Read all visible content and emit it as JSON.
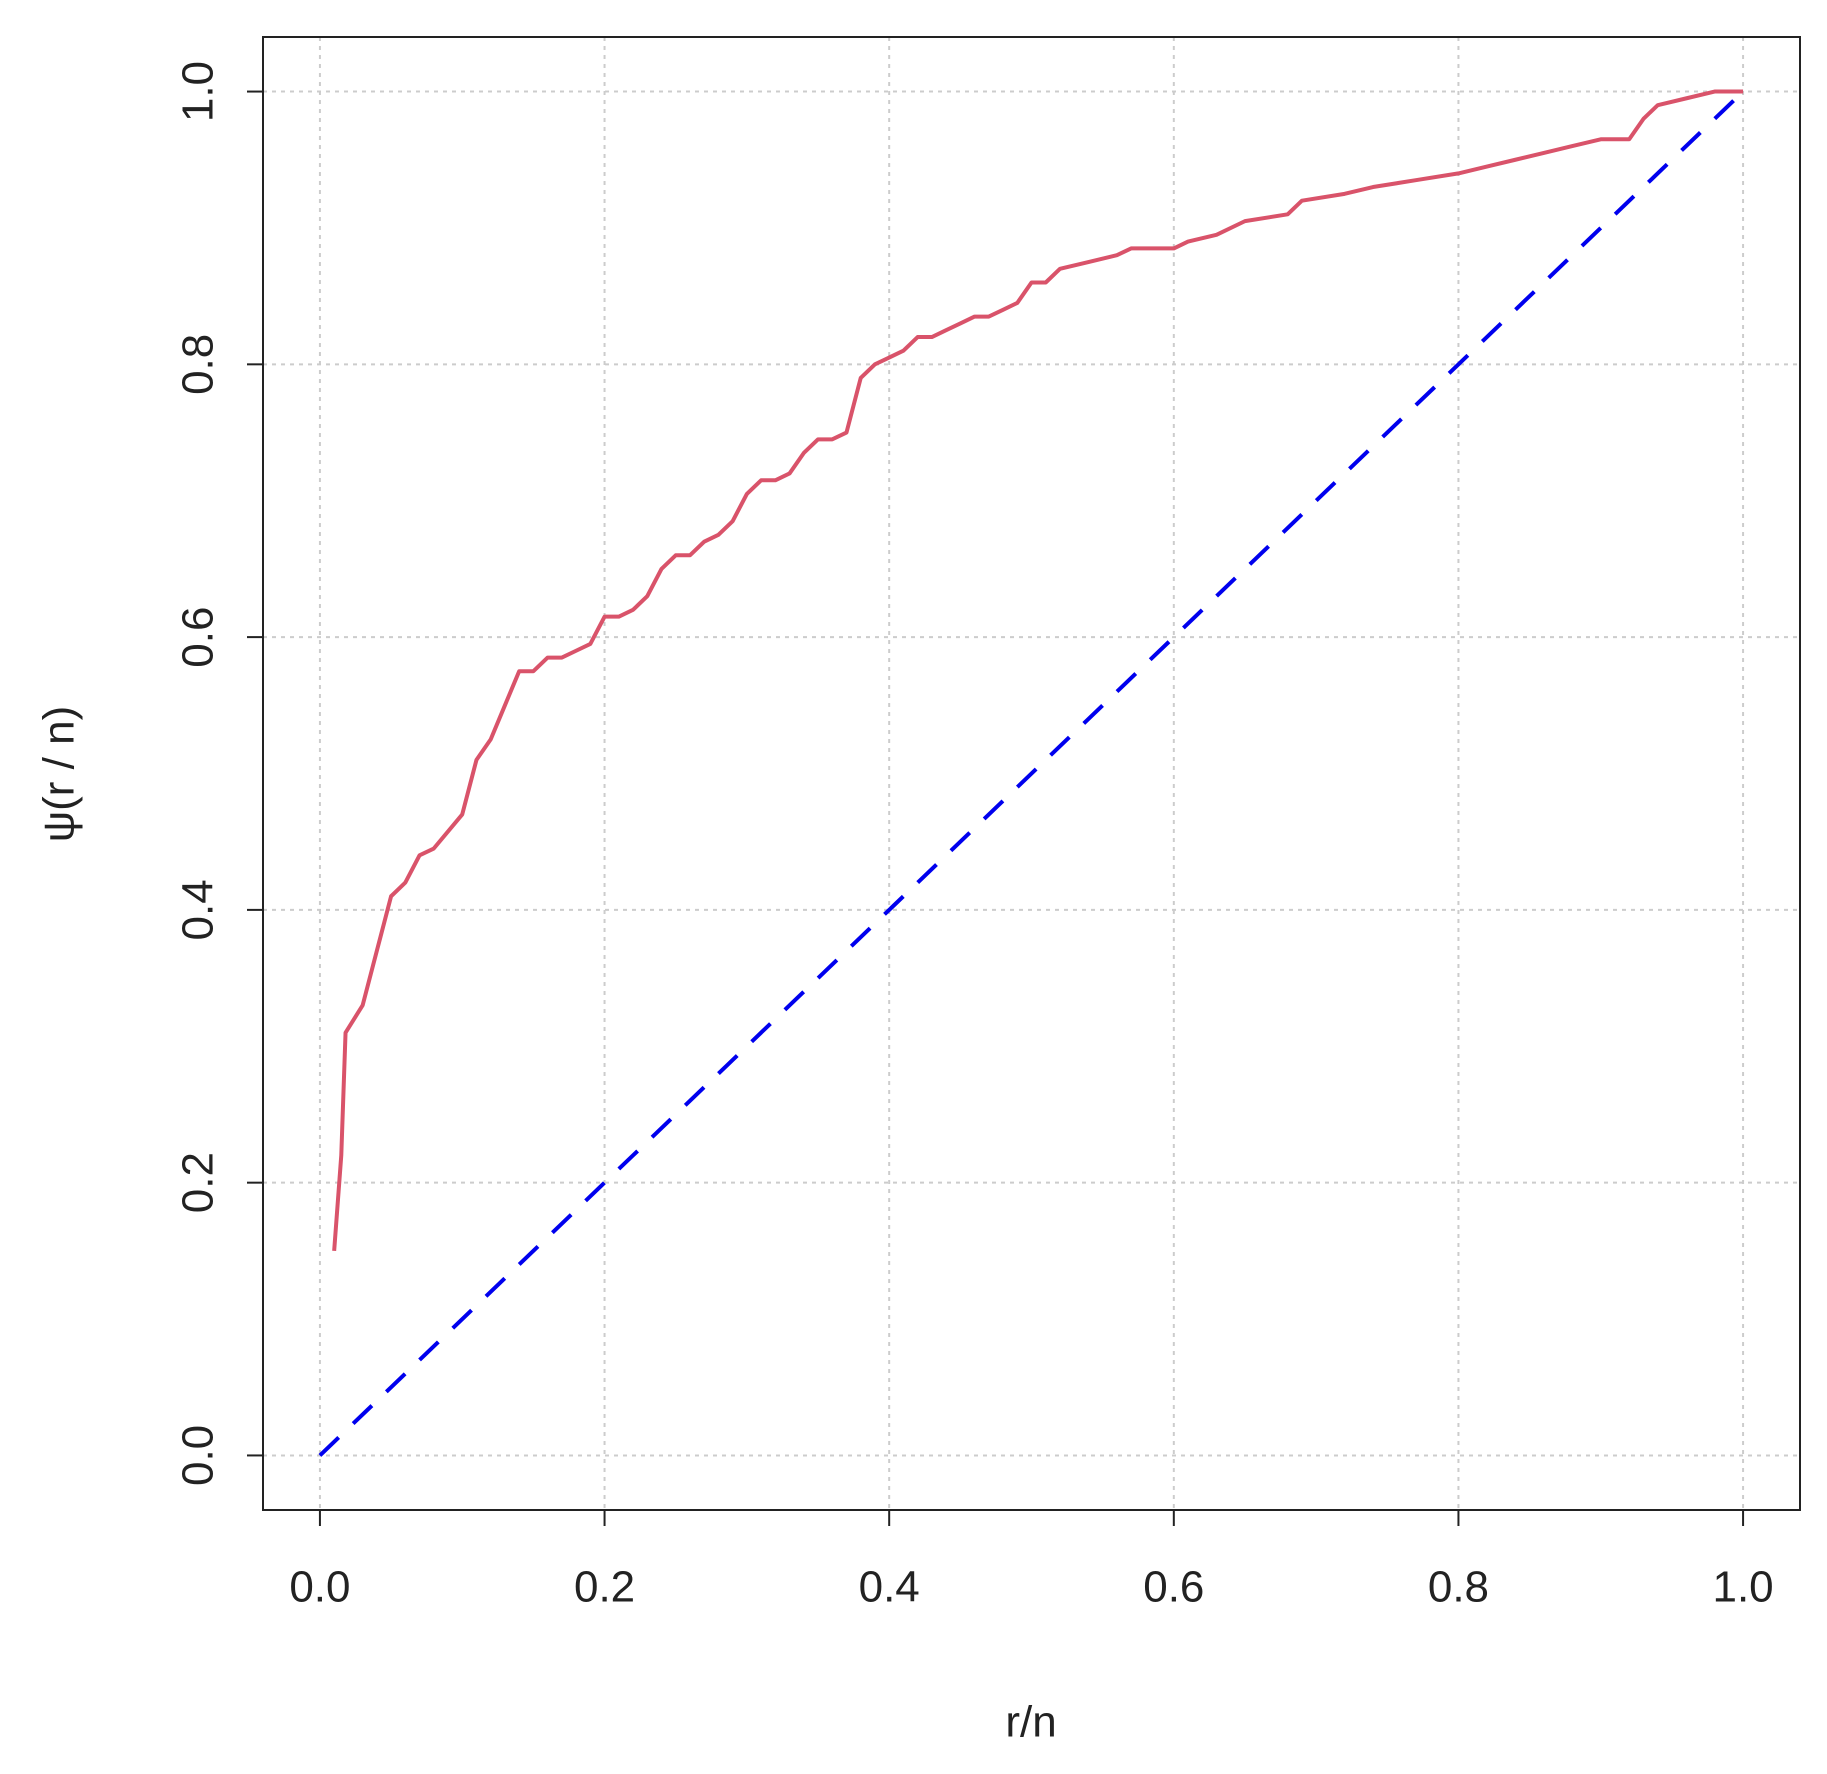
{
  "chart_data": {
    "type": "line",
    "xlabel": "r/n",
    "ylabel": "ψ(r / n)",
    "xlim": [
      -0.04,
      1.04
    ],
    "ylim": [
      -0.04,
      1.04
    ],
    "xticks": [
      {
        "value": 0,
        "label": "0.0"
      },
      0.2,
      0.4,
      0.6,
      0.8,
      {
        "value": 1,
        "label": "1.0"
      }
    ],
    "yticks": [
      {
        "value": 0,
        "label": "0.0"
      },
      0.2,
      0.4,
      0.6,
      0.8,
      {
        "value": 1,
        "label": "1.0"
      }
    ],
    "grid": true,
    "series": [
      {
        "color": "#d9536a",
        "dash": false,
        "x": [
          0.01,
          0.015,
          0.018,
          0.03,
          0.04,
          0.05,
          0.06,
          0.07,
          0.08,
          0.1,
          0.11,
          0.12,
          0.13,
          0.14,
          0.15,
          0.16,
          0.17,
          0.18,
          0.19,
          0.2,
          0.21,
          0.22,
          0.23,
          0.24,
          0.25,
          0.26,
          0.27,
          0.28,
          0.29,
          0.3,
          0.31,
          0.32,
          0.33,
          0.34,
          0.35,
          0.36,
          0.37,
          0.38,
          0.39,
          0.4,
          0.41,
          0.42,
          0.43,
          0.44,
          0.45,
          0.46,
          0.47,
          0.48,
          0.49,
          0.5,
          0.51,
          0.52,
          0.54,
          0.56,
          0.57,
          0.6,
          0.61,
          0.63,
          0.65,
          0.68,
          0.69,
          0.72,
          0.74,
          0.77,
          0.8,
          0.82,
          0.84,
          0.86,
          0.88,
          0.9,
          0.92,
          0.93,
          0.94,
          0.96,
          0.98,
          1.0
        ],
        "values": [
          0.15,
          0.22,
          0.31,
          0.33,
          0.37,
          0.41,
          0.42,
          0.44,
          0.445,
          0.47,
          0.51,
          0.525,
          0.55,
          0.575,
          0.575,
          0.585,
          0.585,
          0.59,
          0.595,
          0.615,
          0.615,
          0.62,
          0.63,
          0.65,
          0.66,
          0.66,
          0.67,
          0.675,
          0.685,
          0.705,
          0.715,
          0.715,
          0.72,
          0.735,
          0.745,
          0.745,
          0.75,
          0.79,
          0.8,
          0.805,
          0.81,
          0.82,
          0.82,
          0.825,
          0.83,
          0.835,
          0.835,
          0.84,
          0.845,
          0.86,
          0.86,
          0.87,
          0.875,
          0.88,
          0.885,
          0.885,
          0.89,
          0.895,
          0.905,
          0.91,
          0.92,
          0.925,
          0.93,
          0.935,
          0.94,
          0.945,
          0.95,
          0.955,
          0.96,
          0.965,
          0.965,
          0.98,
          0.99,
          0.995,
          1.0,
          1.0
        ]
      },
      {
        "color": "#0000ee",
        "dash": true,
        "x": [
          0,
          1
        ],
        "values": [
          0,
          1
        ]
      }
    ]
  }
}
